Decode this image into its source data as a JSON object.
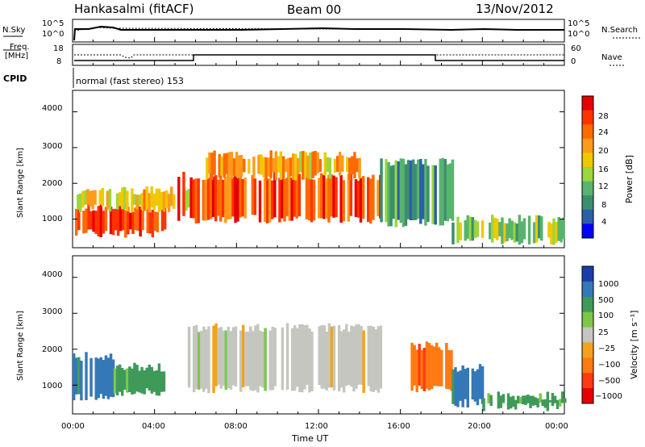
{
  "header": {
    "station": "Hankasalmi (fitACF)",
    "beam": "Beam 00",
    "date": "13/Nov/2012"
  },
  "noise_panel": {
    "left_label": "N.Sky",
    "left_ticks": [
      "10^5",
      "10^0"
    ],
    "right_label": "N.Search",
    "right_ticks": [
      "10^5",
      "10^0"
    ],
    "right_legend_style": "dotted"
  },
  "freq_panel": {
    "left_label_line1": "Freq.",
    "left_label_line2": "[MHz]",
    "left_ticks": [
      "18",
      "8"
    ],
    "right_label": "Nave",
    "right_ticks": [
      "60",
      "0"
    ],
    "right_legend_style": "dotted"
  },
  "cpid_panel": {
    "label": "CPID",
    "text": "normal (fast stereo) 153"
  },
  "power_panel": {
    "ylabel": "Slant Range [km]",
    "yticks": [
      "4000",
      "3000",
      "2000",
      "1000"
    ],
    "colorbar_label": "Power [dB]",
    "colorbar_ticks": [
      "28",
      "24",
      "20",
      "16",
      "12",
      "8",
      "4"
    ],
    "colorbar_colors": [
      "#e60000",
      "#ff3300",
      "#ff6a00",
      "#ff9a1a",
      "#f0c800",
      "#9bd63c",
      "#58b46c",
      "#3c8e6e",
      "#2b5fa8",
      "#0000ff"
    ]
  },
  "velocity_panel": {
    "ylabel": "Slant Range [km]",
    "yticks": [
      "4000",
      "3000",
      "2000",
      "1000"
    ],
    "colorbar_label": "Velocity [m s⁻¹]",
    "colorbar_ticks": [
      "1000",
      "500",
      "100",
      "25",
      "−25",
      "−100",
      "−500",
      "−1000"
    ],
    "colorbar_colors": [
      "#1a3ea8",
      "#3478b8",
      "#3f9a5a",
      "#7cc84a",
      "#c6c6c0",
      "#f4a21e",
      "#ff7a12",
      "#ff3a12",
      "#e60000"
    ],
    "ground_scatter_color": "#c6c6c0"
  },
  "time_axis": {
    "xlabel": "Time UT",
    "ticks": [
      "00:00",
      "04:00",
      "08:00",
      "12:00",
      "16:00",
      "20:00",
      "00:00"
    ]
  },
  "chart_data": {
    "type": "heatmap",
    "title": "Hankasalmi (fitACF)  Beam 00  13/Nov/2012",
    "xlabel": "Time UT",
    "ylabel": "Slant Range [km]",
    "x_range_hours": [
      0,
      24
    ],
    "ylim": [
      200,
      4600
    ],
    "x_ticks": [
      "00:00",
      "04:00",
      "08:00",
      "12:00",
      "16:00",
      "20:00",
      "00:00"
    ],
    "y_ticks": [
      1000,
      2000,
      3000,
      4000
    ],
    "panels": [
      {
        "name": "Power",
        "unit": "dB",
        "color_scale": [
          4,
          8,
          12,
          16,
          20,
          24,
          28
        ],
        "regions": [
          {
            "t0": 0.0,
            "t1": 4.5,
            "r0": 600,
            "r1": 1300,
            "value": 28
          },
          {
            "t0": 0.2,
            "t1": 5.8,
            "r0": 1300,
            "r1": 1800,
            "value": 18
          },
          {
            "t0": 5.0,
            "t1": 15.0,
            "r0": 1000,
            "r1": 2200,
            "value": 26
          },
          {
            "t0": 6.5,
            "t1": 14.0,
            "r0": 2200,
            "r1": 2800,
            "value": 20
          },
          {
            "t0": 15.0,
            "t1": 18.5,
            "r0": 900,
            "r1": 2600,
            "value": 10
          },
          {
            "t0": 18.5,
            "t1": 24.0,
            "r0": 400,
            "r1": 1000,
            "value": 14
          }
        ]
      },
      {
        "name": "Velocity",
        "unit": "m s-1",
        "color_scale": [
          1000,
          500,
          100,
          25,
          -25,
          -100,
          -500,
          -1000
        ],
        "regions": [
          {
            "t0": 0.0,
            "t1": 2.0,
            "r0": 700,
            "r1": 1800,
            "value": 500
          },
          {
            "t0": 2.0,
            "t1": 4.5,
            "r0": 800,
            "r1": 1500,
            "value": 100
          },
          {
            "t0": 5.5,
            "t1": 15.0,
            "r0": 900,
            "r1": 2600,
            "value": 0
          },
          {
            "t0": 16.5,
            "t1": 18.5,
            "r0": 900,
            "r1": 2100,
            "value": -500
          },
          {
            "t0": 18.5,
            "t1": 20.0,
            "r0": 500,
            "r1": 1500,
            "value": 500
          },
          {
            "t0": 20.0,
            "t1": 24.0,
            "r0": 400,
            "r1": 700,
            "value": 100
          }
        ]
      }
    ]
  }
}
